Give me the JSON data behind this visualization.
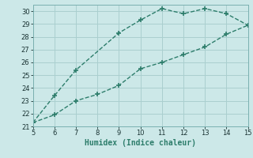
{
  "xlabel": "Humidex (Indice chaleur)",
  "background_color": "#cce8e8",
  "line_color": "#2d7d6b",
  "grid_color": "#aacfcf",
  "x_upper": [
    5,
    6,
    7,
    9,
    10,
    11,
    12,
    13,
    14,
    15
  ],
  "y_upper": [
    21.3,
    23.4,
    25.4,
    28.3,
    29.3,
    30.2,
    29.8,
    30.2,
    29.8,
    28.9
  ],
  "x_lower": [
    5,
    6,
    7,
    8,
    9,
    10,
    11,
    12,
    13,
    14,
    15
  ],
  "y_lower": [
    21.3,
    21.9,
    23.0,
    23.5,
    24.2,
    25.5,
    26.0,
    26.6,
    27.2,
    28.2,
    28.9
  ],
  "xlim": [
    5,
    15
  ],
  "ylim": [
    21,
    30.5
  ],
  "xticks": [
    5,
    6,
    7,
    8,
    9,
    10,
    11,
    12,
    13,
    14,
    15
  ],
  "yticks": [
    21,
    22,
    23,
    24,
    25,
    26,
    27,
    28,
    29,
    30
  ],
  "marker": "+",
  "marker_size": 5,
  "line_width": 1.0,
  "linestyle": "--"
}
